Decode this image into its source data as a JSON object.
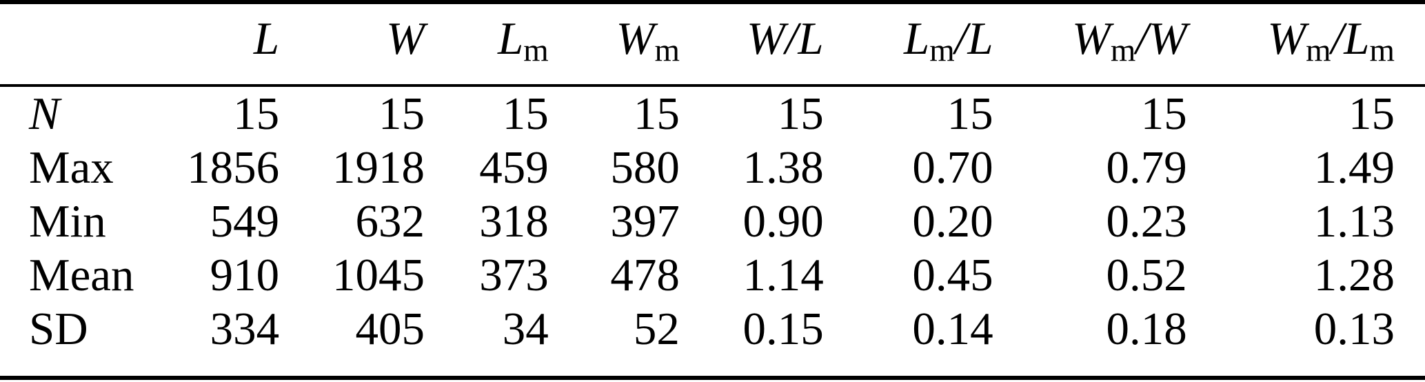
{
  "colors": {
    "background": "#ffffff",
    "text": "#000000",
    "rule": "#000000"
  },
  "table": {
    "columns": [
      {
        "id": "stub",
        "segments": []
      },
      {
        "id": "L",
        "segments": [
          {
            "t": "L",
            "k": "i"
          }
        ]
      },
      {
        "id": "W",
        "segments": [
          {
            "t": "W",
            "k": "i"
          }
        ]
      },
      {
        "id": "Lm",
        "segments": [
          {
            "t": "L",
            "k": "i"
          },
          {
            "t": "m",
            "k": "s"
          }
        ]
      },
      {
        "id": "Wm",
        "segments": [
          {
            "t": "W",
            "k": "i"
          },
          {
            "t": "m",
            "k": "s"
          }
        ]
      },
      {
        "id": "W-L",
        "segments": [
          {
            "t": "W",
            "k": "i"
          },
          {
            "t": "/",
            "k": "o"
          },
          {
            "t": "L",
            "k": "i"
          }
        ]
      },
      {
        "id": "Lm-L",
        "segments": [
          {
            "t": "L",
            "k": "i"
          },
          {
            "t": "m",
            "k": "s"
          },
          {
            "t": "/",
            "k": "o"
          },
          {
            "t": "L",
            "k": "i"
          }
        ]
      },
      {
        "id": "Wm-W",
        "segments": [
          {
            "t": "W",
            "k": "i"
          },
          {
            "t": "m",
            "k": "s"
          },
          {
            "t": "/",
            "k": "o"
          },
          {
            "t": "W",
            "k": "i"
          }
        ]
      },
      {
        "id": "Wm-Lm",
        "segments": [
          {
            "t": "W",
            "k": "i"
          },
          {
            "t": "m",
            "k": "s"
          },
          {
            "t": "/",
            "k": "o"
          },
          {
            "t": "L",
            "k": "i"
          },
          {
            "t": "m",
            "k": "s"
          }
        ]
      }
    ],
    "rows": [
      {
        "label": "N",
        "italic": true,
        "values": [
          "15",
          "15",
          "15",
          "15",
          "15",
          "15",
          "15",
          "15"
        ]
      },
      {
        "label": "Max",
        "italic": false,
        "values": [
          "1856",
          "1918",
          "459",
          "580",
          "1.38",
          "0.70",
          "0.79",
          "1.49"
        ]
      },
      {
        "label": "Min",
        "italic": false,
        "values": [
          "549",
          "632",
          "318",
          "397",
          "0.90",
          "0.20",
          "0.23",
          "1.13"
        ]
      },
      {
        "label": "Mean",
        "italic": false,
        "values": [
          "910",
          "1045",
          "373",
          "478",
          "1.14",
          "0.45",
          "0.52",
          "1.28"
        ]
      },
      {
        "label": "SD",
        "italic": false,
        "values": [
          "334",
          "405",
          "34",
          "52",
          "0.15",
          "0.14",
          "0.18",
          "0.13"
        ]
      }
    ]
  },
  "chart_data": {
    "type": "table",
    "columns": [
      "",
      "L",
      "W",
      "Lm",
      "Wm",
      "W/L",
      "Lm/L",
      "Wm/W",
      "Wm/Lm"
    ],
    "rows": [
      {
        "label": "N",
        "values": [
          15,
          15,
          15,
          15,
          15,
          15,
          15,
          15
        ]
      },
      {
        "label": "Max",
        "values": [
          1856,
          1918,
          459,
          580,
          1.38,
          0.7,
          0.79,
          1.49
        ]
      },
      {
        "label": "Min",
        "values": [
          549,
          632,
          318,
          397,
          0.9,
          0.2,
          0.23,
          1.13
        ]
      },
      {
        "label": "Mean",
        "values": [
          910,
          1045,
          373,
          478,
          1.14,
          0.45,
          0.52,
          1.28
        ]
      },
      {
        "label": "SD",
        "values": [
          334,
          405,
          34,
          52,
          0.15,
          0.14,
          0.18,
          0.13
        ]
      }
    ]
  }
}
